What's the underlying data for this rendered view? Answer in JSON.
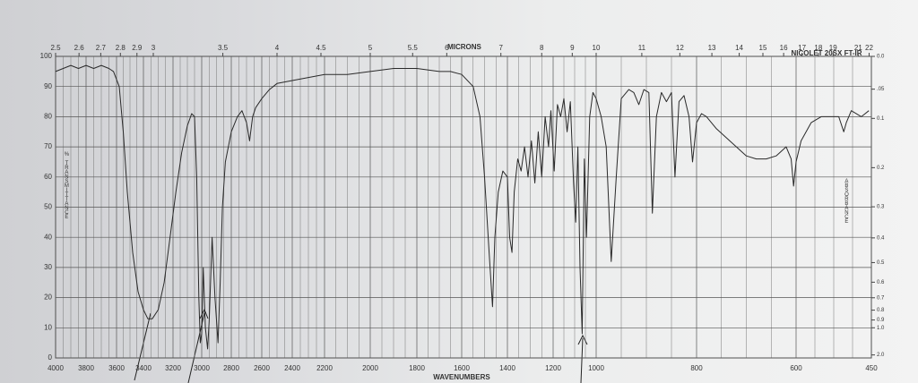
{
  "chart_data": {
    "type": "line",
    "x2label": "MICRONS",
    "annotation": "NICOLET 20SX FT-IR",
    "xlabel": "WAVENUMBERS",
    "ylabel": "% TRANSMITTANCE",
    "y2label": "ABSORBANCE",
    "xlim": [
      4000,
      450
    ],
    "xticks": [
      4000,
      3800,
      3600,
      3400,
      3200,
      3000,
      2800,
      2600,
      2400,
      2200,
      2000,
      1800,
      1600,
      1400,
      1200,
      1000,
      800,
      600,
      450
    ],
    "x2ticks": [
      2.5,
      2.6,
      2.7,
      2.8,
      2.9,
      3,
      3.5,
      4,
      4.5,
      5,
      5.5,
      6,
      7,
      8,
      9,
      10,
      11,
      12,
      13,
      14,
      15,
      16,
      17,
      18,
      19,
      21,
      22
    ],
    "ylim": [
      0,
      100
    ],
    "yticks": [
      0,
      10,
      20,
      30,
      40,
      50,
      60,
      70,
      80,
      90,
      100
    ],
    "y2ticks": [
      {
        "value": 0,
        "label": "0.0"
      },
      {
        "value": 0.05,
        "label": ".05"
      },
      0.1,
      0.2,
      0.3,
      0.4,
      0.5,
      0.6,
      0.7,
      0.8,
      0.9,
      {
        "value": 1,
        "label": "1.0"
      },
      {
        "value": 2,
        "label": "2.0"
      }
    ],
    "grid": true,
    "series": [
      {
        "color": "#2a2a2a",
        "x": [
          4000,
          3950,
          3900,
          3850,
          3800,
          3750,
          3700,
          3650,
          3620,
          3580,
          3550,
          3520,
          3480,
          3440,
          3400,
          3370,
          3340,
          3300,
          3260,
          3220,
          3180,
          3140,
          3100,
          3070,
          3050,
          3035,
          3020,
          3010,
          3000,
          2990,
          2975,
          2960,
          2950,
          2930,
          2910,
          2890,
          2875,
          2860,
          2840,
          2800,
          2760,
          2730,
          2700,
          2680,
          2660,
          2640,
          2600,
          2550,
          2500,
          2400,
          2300,
          2200,
          2100,
          2000,
          1900,
          1800,
          1700,
          1650,
          1600,
          1550,
          1520,
          1500,
          1480,
          1465,
          1455,
          1440,
          1420,
          1400,
          1390,
          1380,
          1370,
          1355,
          1340,
          1325,
          1310,
          1295,
          1280,
          1265,
          1250,
          1235,
          1220,
          1210,
          1195,
          1180,
          1165,
          1150,
          1135,
          1120,
          1105,
          1095,
          1085,
          1075,
          1065,
          1055,
          1045,
          1030,
          1015,
          1000,
          990,
          980,
          970,
          960,
          950,
          935,
          925,
          915,
          905,
          895,
          888,
          880,
          870,
          860,
          850,
          843,
          835,
          825,
          815,
          808,
          800,
          790,
          780,
          760,
          740,
          720,
          700,
          680,
          660,
          640,
          620,
          610,
          605,
          600,
          590,
          570,
          550,
          530,
          515,
          505,
          500,
          490,
          470,
          455
        ],
        "values": [
          95,
          96,
          97,
          96,
          97,
          96,
          97,
          96,
          95,
          90,
          75,
          55,
          35,
          22,
          16,
          13,
          13,
          16,
          25,
          40,
          55,
          68,
          77,
          81,
          80,
          60,
          20,
          5,
          8,
          30,
          10,
          3,
          12,
          40,
          20,
          5,
          25,
          50,
          65,
          75,
          80,
          82,
          78,
          72,
          80,
          83,
          86,
          89,
          91,
          92,
          93,
          94,
          94,
          95,
          96,
          96,
          95,
          95,
          94,
          90,
          80,
          60,
          35,
          17,
          40,
          55,
          62,
          60,
          40,
          35,
          55,
          66,
          62,
          70,
          60,
          72,
          58,
          75,
          60,
          80,
          70,
          82,
          62,
          84,
          80,
          86,
          75,
          85,
          58,
          45,
          70,
          30,
          8,
          66,
          40,
          80,
          88,
          86,
          80,
          70,
          32,
          60,
          86,
          89,
          88,
          84,
          89,
          88,
          48,
          80,
          88,
          85,
          88,
          60,
          85,
          87,
          80,
          65,
          78,
          81,
          80,
          76,
          73,
          70,
          67,
          66,
          66,
          67,
          70,
          66,
          57,
          65,
          72,
          78,
          80,
          80,
          80,
          75,
          78,
          82,
          80,
          82
        ]
      }
    ]
  }
}
